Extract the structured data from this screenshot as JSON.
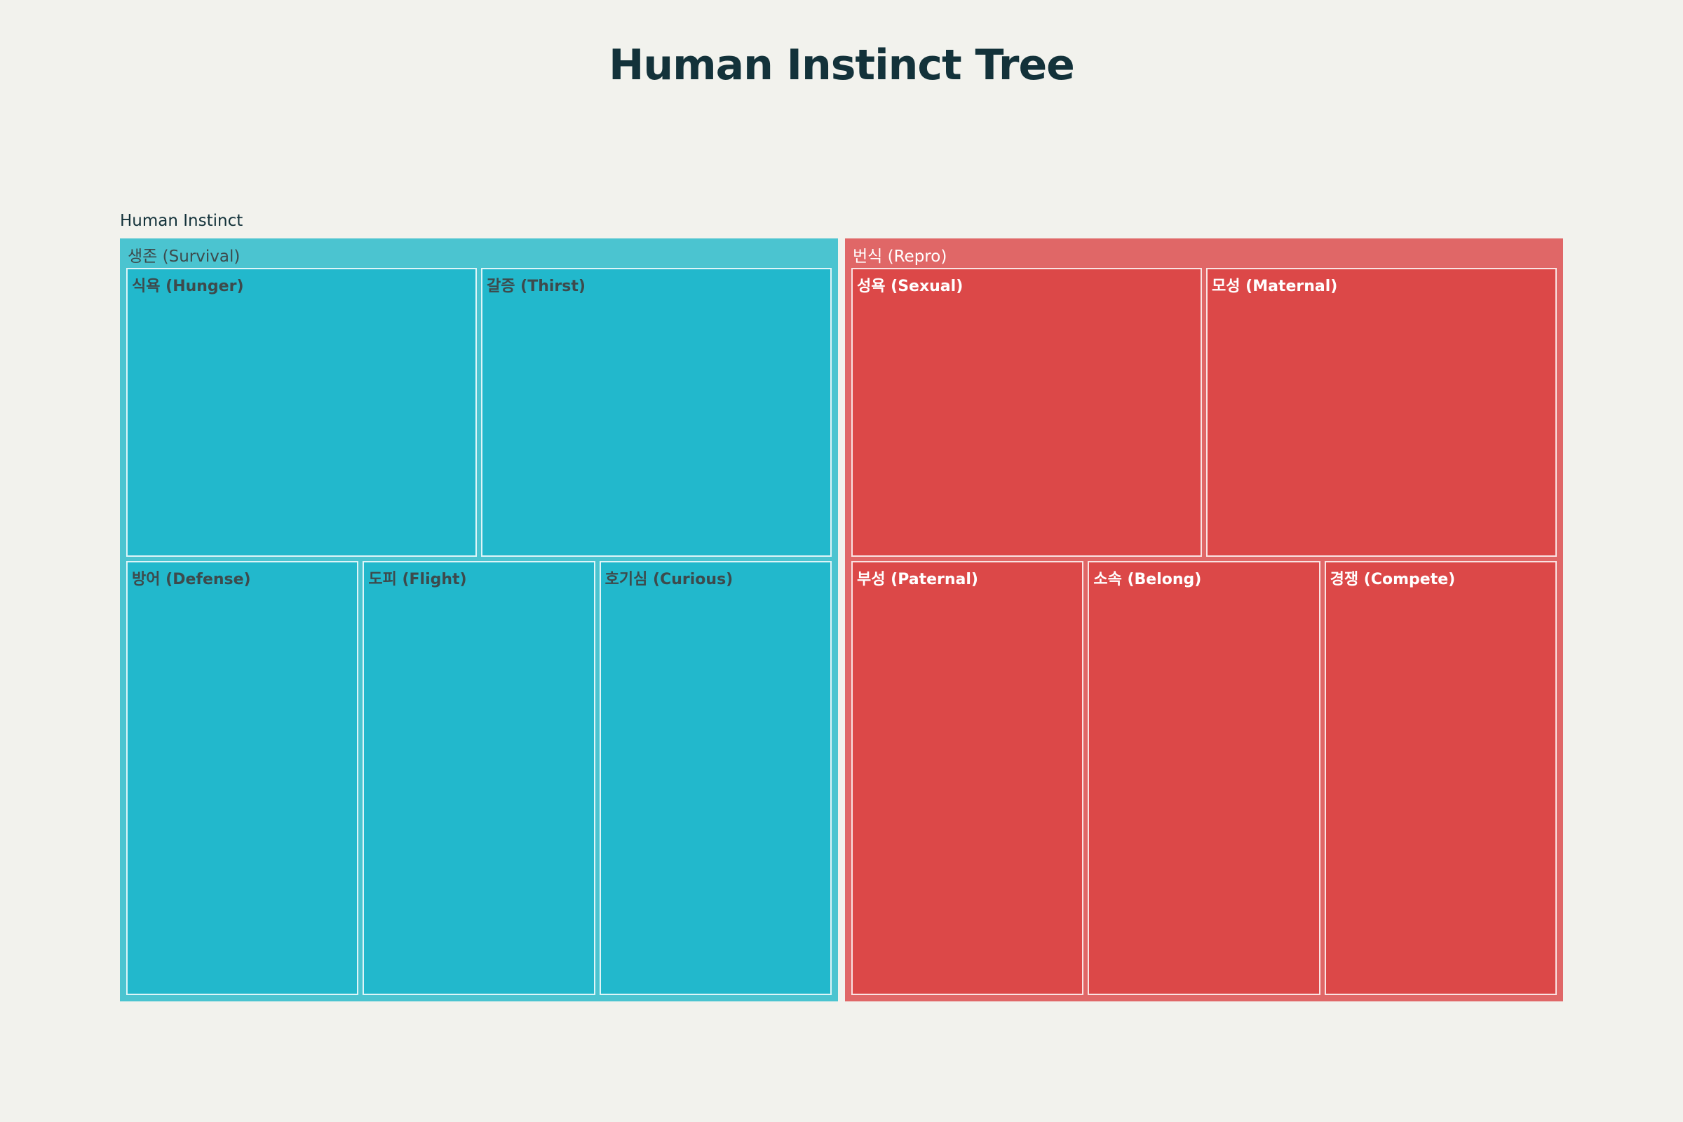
{
  "chart_data": {
    "type": "treemap",
    "title": "Human Instinct Tree",
    "root": "Human Instinct",
    "groups": [
      {
        "name": "생존 (Survival)",
        "color": "#4bc4d0",
        "leaf_color": "#22b8cc",
        "text_color": "#3d4a4c",
        "leaf_rows": [
          2,
          3
        ],
        "leaves": [
          {
            "name": "식욕 (Hunger)",
            "value": 1
          },
          {
            "name": "갈증 (Thirst)",
            "value": 1
          },
          {
            "name": "방어 (Defense)",
            "value": 1
          },
          {
            "name": "도피 (Flight)",
            "value": 1
          },
          {
            "name": "호기심 (Curious)",
            "value": 1
          }
        ]
      },
      {
        "name": "번식 (Repro)",
        "color": "#e06767",
        "leaf_color": "#dc4848",
        "text_color": "#ffffff",
        "leaf_rows": [
          2,
          3
        ],
        "leaves": [
          {
            "name": "성욕 (Sexual)",
            "value": 1
          },
          {
            "name": "모성 (Maternal)",
            "value": 1
          },
          {
            "name": "부성 (Paternal)",
            "value": 1
          },
          {
            "name": "소속 (Belong)",
            "value": 1
          },
          {
            "name": "경쟁 (Compete)",
            "value": 1
          }
        ]
      }
    ]
  }
}
